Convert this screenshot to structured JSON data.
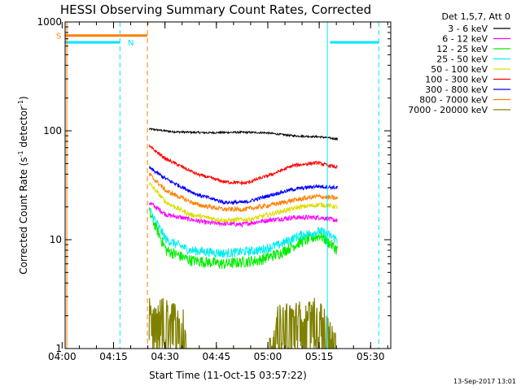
{
  "chart_data": {
    "type": "line",
    "title": "HESSI Observing Summary Count Rates, Corrected",
    "xlabel": "Start Time (11-Oct-15 03:57:22)",
    "ylabel_main": "Corrected Count Rate (s",
    "ylabel_sup1": "-1",
    "ylabel_mid": " detector",
    "ylabel_sup2": "-1",
    "ylabel_end": ")",
    "yscale": "log",
    "ylim": [
      1,
      1000
    ],
    "xlim_minutes": [
      3.5,
      98.5
    ],
    "x_ticks": [
      {
        "label": "04:00",
        "min": 2.63
      },
      {
        "label": "04:15",
        "min": 17.63
      },
      {
        "label": "04:30",
        "min": 32.63
      },
      {
        "label": "04:45",
        "min": 47.63
      },
      {
        "label": "05:00",
        "min": 62.63
      },
      {
        "label": "05:15",
        "min": 77.63
      },
      {
        "label": "05:30",
        "min": 92.63
      }
    ],
    "y_ticks": [
      {
        "label": "1",
        "value": 1
      },
      {
        "label": "10",
        "value": 10
      },
      {
        "label": "100",
        "value": 100
      },
      {
        "label": "1000",
        "value": 1000
      }
    ],
    "legend_header": "Det 1,5,7, Att 0",
    "data_range_minutes": [
      28,
      83
    ],
    "series": [
      {
        "name": "3 - 6 keV",
        "color": "#000000",
        "knots": [
          [
            28,
            104
          ],
          [
            35,
            98
          ],
          [
            45,
            96
          ],
          [
            55,
            97
          ],
          [
            62,
            96
          ],
          [
            70,
            90
          ],
          [
            78,
            88
          ],
          [
            83,
            84
          ]
        ],
        "noise": 0.02
      },
      {
        "name": "6 - 12 keV",
        "color": "#ff00ff",
        "knots": [
          [
            28,
            22
          ],
          [
            33,
            17
          ],
          [
            45,
            14.3
          ],
          [
            55,
            13.8
          ],
          [
            62,
            15
          ],
          [
            70,
            16
          ],
          [
            78,
            16
          ],
          [
            83,
            15
          ]
        ],
        "noise": 0.05
      },
      {
        "name": "12 - 25 keV",
        "color": "#00ee00",
        "knots": [
          [
            28,
            18
          ],
          [
            33,
            8
          ],
          [
            40,
            6.5
          ],
          [
            50,
            6
          ],
          [
            60,
            6.5
          ],
          [
            66,
            7.5
          ],
          [
            72,
            9.5
          ],
          [
            78,
            11
          ],
          [
            83,
            8
          ]
        ],
        "noise": 0.12
      },
      {
        "name": "25 - 50 keV",
        "color": "#00eeee",
        "knots": [
          [
            28,
            19
          ],
          [
            33,
            10
          ],
          [
            40,
            8
          ],
          [
            50,
            7.5
          ],
          [
            60,
            8
          ],
          [
            66,
            9
          ],
          [
            72,
            11
          ],
          [
            78,
            12
          ],
          [
            83,
            10
          ]
        ],
        "noise": 0.1
      },
      {
        "name": "50 - 100 keV",
        "color": "#dddd00",
        "knots": [
          [
            28,
            33
          ],
          [
            33,
            22
          ],
          [
            40,
            17
          ],
          [
            50,
            15
          ],
          [
            58,
            15.5
          ],
          [
            66,
            18
          ],
          [
            72,
            20
          ],
          [
            78,
            21
          ],
          [
            83,
            20
          ]
        ],
        "noise": 0.05
      },
      {
        "name": "100 - 300 keV",
        "color": "#ff0000",
        "knots": [
          [
            28,
            72
          ],
          [
            33,
            55
          ],
          [
            42,
            40
          ],
          [
            50,
            34
          ],
          [
            56,
            33
          ],
          [
            64,
            40
          ],
          [
            70,
            48
          ],
          [
            77,
            51
          ],
          [
            83,
            46
          ]
        ],
        "noise": 0.035
      },
      {
        "name": "300 - 800 keV",
        "color": "#0000ff",
        "knots": [
          [
            28,
            46
          ],
          [
            33,
            36
          ],
          [
            42,
            26
          ],
          [
            50,
            22
          ],
          [
            56,
            22
          ],
          [
            64,
            26
          ],
          [
            70,
            29
          ],
          [
            77,
            31
          ],
          [
            83,
            30
          ]
        ],
        "noise": 0.04
      },
      {
        "name": "800 - 7000 keV",
        "color": "#ff8000",
        "knots": [
          [
            28,
            40
          ],
          [
            33,
            28
          ],
          [
            42,
            21
          ],
          [
            50,
            19
          ],
          [
            56,
            19
          ],
          [
            64,
            21
          ],
          [
            70,
            23
          ],
          [
            77,
            25
          ],
          [
            83,
            24
          ]
        ],
        "noise": 0.05
      },
      {
        "name": "7000 - 20000 keV",
        "color": "#808000",
        "knots": [
          [
            28,
            2.6
          ],
          [
            33,
            2.3
          ],
          [
            38,
            2.2
          ],
          [
            39,
            1
          ],
          [
            63,
            1
          ],
          [
            65,
            2
          ],
          [
            72,
            2.2
          ],
          [
            78,
            2.4
          ],
          [
            83,
            1
          ]
        ],
        "noise": 0.25
      }
    ],
    "flags": [
      {
        "letter": "S",
        "color": "#ff8000",
        "y_value": 750,
        "x_start": 3.5,
        "x_end": 27.5
      },
      {
        "letter": "N",
        "color": "#00e5ff",
        "y_value": 650,
        "x_start": 3.5,
        "x_end": 19.5
      },
      {
        "letter": "",
        "color": "#00e5ff",
        "y_value": 650,
        "x_start": 80.8,
        "x_end": 95.0
      }
    ],
    "vlines": [
      {
        "color": "#00e5ff",
        "min": 3.5,
        "style": "solid"
      },
      {
        "color": "#ff8000",
        "min": 4.0,
        "style": "solid"
      },
      {
        "color": "#00e5ff",
        "min": 19.5,
        "style": "dashed"
      },
      {
        "color": "#ff8000",
        "min": 27.5,
        "style": "dashed"
      },
      {
        "color": "#00e5ff",
        "min": 80.0,
        "style": "solid"
      },
      {
        "color": "#00e5ff",
        "min": 95.0,
        "style": "dashed"
      }
    ]
  },
  "footer": {
    "date_stamp": "13-Sep-2017 13:01"
  }
}
